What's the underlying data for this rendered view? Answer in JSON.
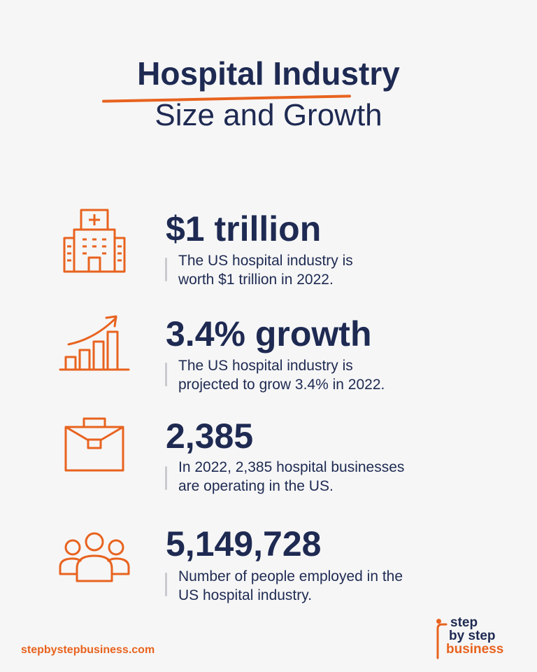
{
  "title": {
    "main": "Hospital Industry",
    "sub": "Size and Growth"
  },
  "stats": [
    {
      "icon": "hospital-building-icon",
      "value": "$1 trillion",
      "line1": "The US hospital industry is",
      "line2": "worth $1 trillion in 2022."
    },
    {
      "icon": "growth-bar-chart-icon",
      "value": "3.4% growth",
      "line1": "The US hospital industry is",
      "line2": "projected to grow 3.4% in 2022."
    },
    {
      "icon": "briefcase-icon",
      "value": "2,385",
      "line1": "In 2022, 2,385 hospital businesses",
      "line2": "are operating in the US."
    },
    {
      "icon": "people-group-icon",
      "value": "5,149,728",
      "line1": "Number of people employed in the",
      "line2": "US hospital industry."
    }
  ],
  "footer": {
    "url": "stepbystepbusiness.com",
    "logo": {
      "line1": "step",
      "line2": "by step",
      "line3": "business"
    }
  },
  "colors": {
    "accent": "#e8631f",
    "text": "#1e2a52",
    "background": "#f6f6f6"
  }
}
